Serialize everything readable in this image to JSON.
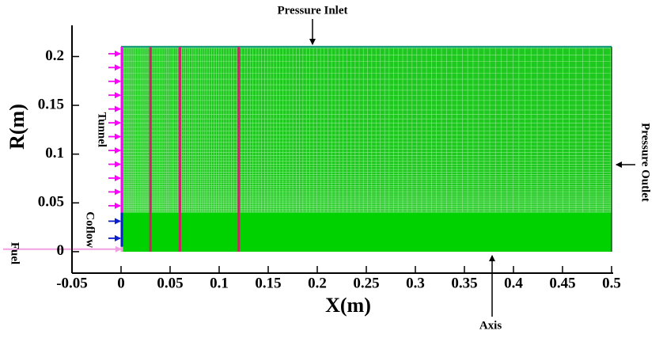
{
  "chart_data": {
    "type": "mesh-domain",
    "xlabel": "X(m)",
    "ylabel": "R(m)",
    "xlim": [
      -0.05,
      0.5
    ],
    "ylim": [
      -0.022,
      0.232
    ],
    "xticks": [
      -0.05,
      0,
      0.05,
      0.1,
      0.15,
      0.2,
      0.25,
      0.3,
      0.35,
      0.4,
      0.45,
      0.5
    ],
    "yticks": [
      0,
      0.05,
      0.1,
      0.15,
      0.2
    ],
    "domain": {
      "x": [
        0,
        0.5
      ],
      "y": [
        0,
        0.21
      ],
      "color": "#1fc81f"
    },
    "fine_region": {
      "y": [
        0,
        0.04
      ],
      "color": "#00d200"
    },
    "probe_lines": {
      "x": [
        0.03,
        0.06,
        0.12
      ],
      "color": "#d0206a"
    },
    "inlets": [
      {
        "name": "Tunnel",
        "color": "#ff00ff",
        "y": [
          0.04,
          0.21
        ]
      },
      {
        "name": "Coflow",
        "color": "#0a1ecc",
        "y": [
          0.005,
          0.04
        ]
      },
      {
        "name": "Fuel",
        "color": "#f0a0e0",
        "y": [
          0,
          0.005
        ]
      }
    ],
    "annotations": {
      "top": "Pressure Inlet",
      "right": "Pressure Outlet",
      "bottom": "Axis"
    }
  }
}
